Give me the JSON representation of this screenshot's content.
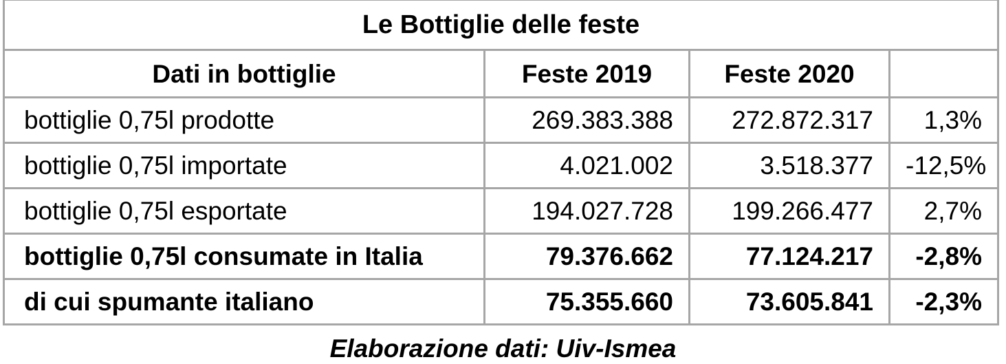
{
  "chart_data": {
    "type": "table",
    "title": "Le Bottiglie delle feste",
    "columns": [
      "Dati in bottiglie",
      "Feste 2019",
      "Feste 2020",
      ""
    ],
    "rows": [
      {
        "label": "bottiglie 0,75l prodotte",
        "feste_2019": "269.383.388",
        "feste_2020": "272.872.317",
        "variation": "1,3%",
        "bold": false
      },
      {
        "label": "bottiglie 0,75l importate",
        "feste_2019": "4.021.002",
        "feste_2020": "3.518.377",
        "variation": "-12,5%",
        "bold": false
      },
      {
        "label": "bottiglie 0,75l esportate",
        "feste_2019": "194.027.728",
        "feste_2020": "199.266.477",
        "variation": "2,7%",
        "bold": false
      },
      {
        "label": "bottiglie 0,75l consumate in Italia",
        "feste_2019": "79.376.662",
        "feste_2020": "77.124.217",
        "variation": "-2,8%",
        "bold": true
      },
      {
        "label": "di cui spumante italiano",
        "feste_2019": "75.355.660",
        "feste_2020": "73.605.841",
        "variation": "-2,3%",
        "bold": true
      }
    ],
    "caption": "Elaborazione dati: Uiv-Ismea"
  },
  "colors": {
    "border": "#a6a6a6",
    "text": "#000000",
    "background": "#ffffff"
  }
}
